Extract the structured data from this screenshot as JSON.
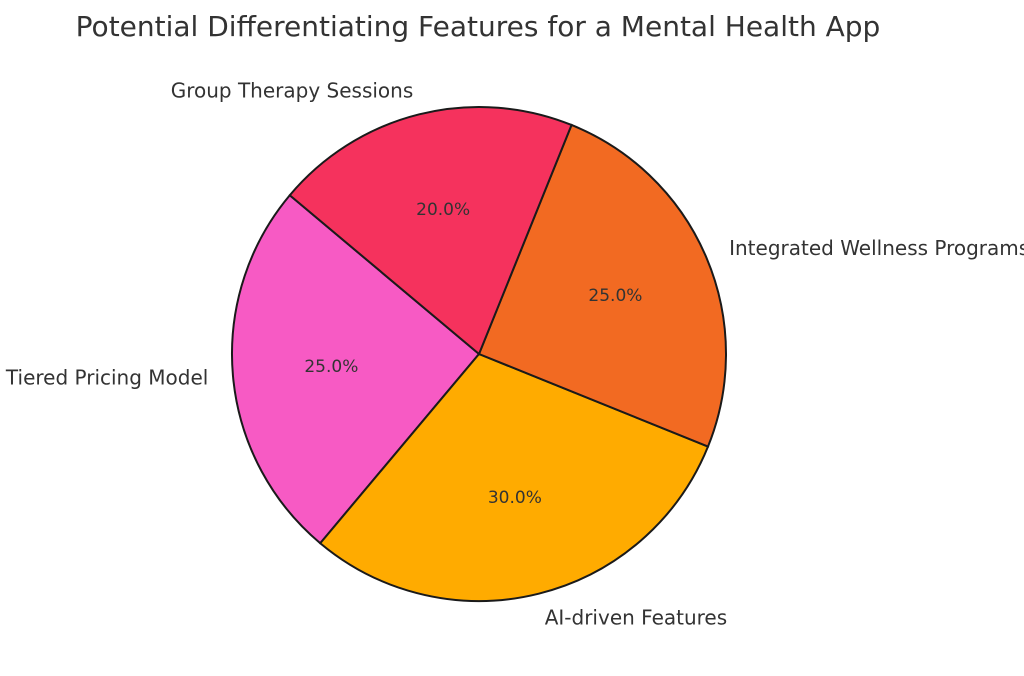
{
  "chart_data": {
    "type": "pie",
    "title": "Potential Differentiating Features for a Mental Health App",
    "start_angle_deg": 140,
    "direction": "counterclockwise",
    "slices": [
      {
        "label": "Tiered Pricing Model",
        "value": 25.0,
        "pct_label": "25.0%",
        "color": "#F75AC4"
      },
      {
        "label": "AI-driven Features",
        "value": 30.0,
        "pct_label": "30.0%",
        "color": "#FFAB00"
      },
      {
        "label": "Integrated Wellness Programs",
        "value": 25.0,
        "pct_label": "25.0%",
        "color": "#F26A22"
      },
      {
        "label": "Group Therapy Sessions",
        "value": 20.0,
        "pct_label": "20.0%",
        "color": "#F5325D"
      }
    ],
    "legend": "none",
    "grid": false
  }
}
